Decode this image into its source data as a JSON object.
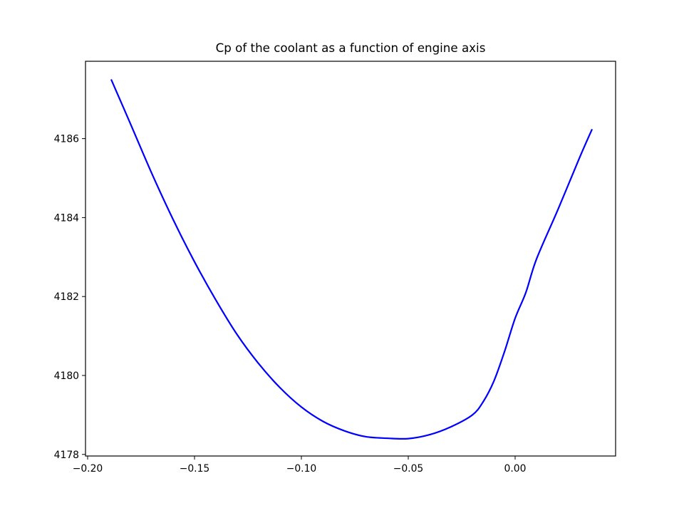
{
  "chart_data": {
    "type": "line",
    "title": "Cp of the coolant as a function of engine axis",
    "xlabel": "",
    "ylabel": "",
    "xlim": [
      -0.201,
      0.047
    ],
    "ylim": [
      4177.96,
      4187.96
    ],
    "grid": false,
    "x_ticks": [
      {
        "value": -0.2,
        "label": "−0.20"
      },
      {
        "value": -0.15,
        "label": "−0.15"
      },
      {
        "value": -0.1,
        "label": "−0.10"
      },
      {
        "value": -0.05,
        "label": "−0.05"
      },
      {
        "value": 0.0,
        "label": "0.00"
      }
    ],
    "y_ticks": [
      {
        "value": 4178,
        "label": "4178"
      },
      {
        "value": 4180,
        "label": "4180"
      },
      {
        "value": 4182,
        "label": "4182"
      },
      {
        "value": 4184,
        "label": "4184"
      },
      {
        "value": 4186,
        "label": "4186"
      }
    ],
    "series": [
      {
        "color": "#0000ff",
        "x": [
          -0.189,
          -0.18,
          -0.17,
          -0.16,
          -0.15,
          -0.14,
          -0.13,
          -0.12,
          -0.11,
          -0.1,
          -0.09,
          -0.08,
          -0.07,
          -0.06,
          -0.05,
          -0.04,
          -0.03,
          -0.02,
          -0.015,
          -0.01,
          -0.005,
          0.0,
          0.005,
          0.01,
          0.02,
          0.03,
          0.036
        ],
        "y": [
          4187.5,
          4186.38,
          4185.12,
          4183.95,
          4182.88,
          4181.91,
          4181.03,
          4180.3,
          4179.69,
          4179.2,
          4178.84,
          4178.6,
          4178.45,
          4178.41,
          4178.4,
          4178.5,
          4178.7,
          4179.0,
          4179.33,
          4179.85,
          4180.6,
          4181.45,
          4182.1,
          4182.95,
          4184.2,
          4185.5,
          4186.24
        ]
      }
    ]
  }
}
